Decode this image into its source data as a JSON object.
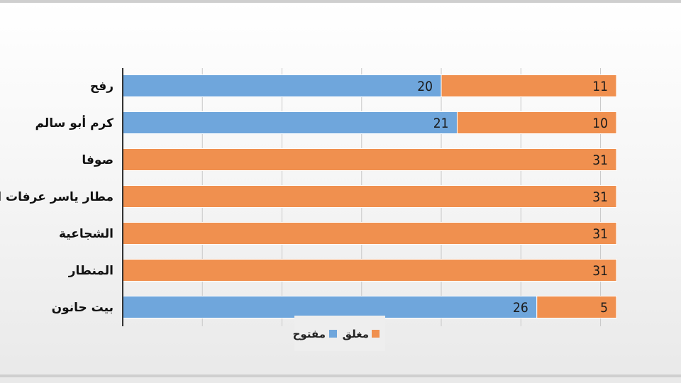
{
  "chart_data": {
    "type": "bar",
    "orientation": "horizontal",
    "stacked": true,
    "categories": [
      "رفح",
      "كرم أبو سالم",
      "صوفا",
      "مطار ياسر عرفات الدولي",
      "الشجاعية",
      "المنطار",
      "بيت حانون"
    ],
    "series": [
      {
        "name": "مفتوح",
        "color": "#6fa6dc",
        "values": [
          20,
          21,
          0,
          0,
          0,
          0,
          26
        ]
      },
      {
        "name": "مغلق",
        "color": "#f0904f",
        "values": [
          11,
          10,
          31,
          31,
          31,
          31,
          5
        ]
      }
    ],
    "title": "",
    "xlabel": "",
    "ylabel": "",
    "xlim": [
      0,
      31
    ],
    "grid": true,
    "legend": "bottom"
  }
}
